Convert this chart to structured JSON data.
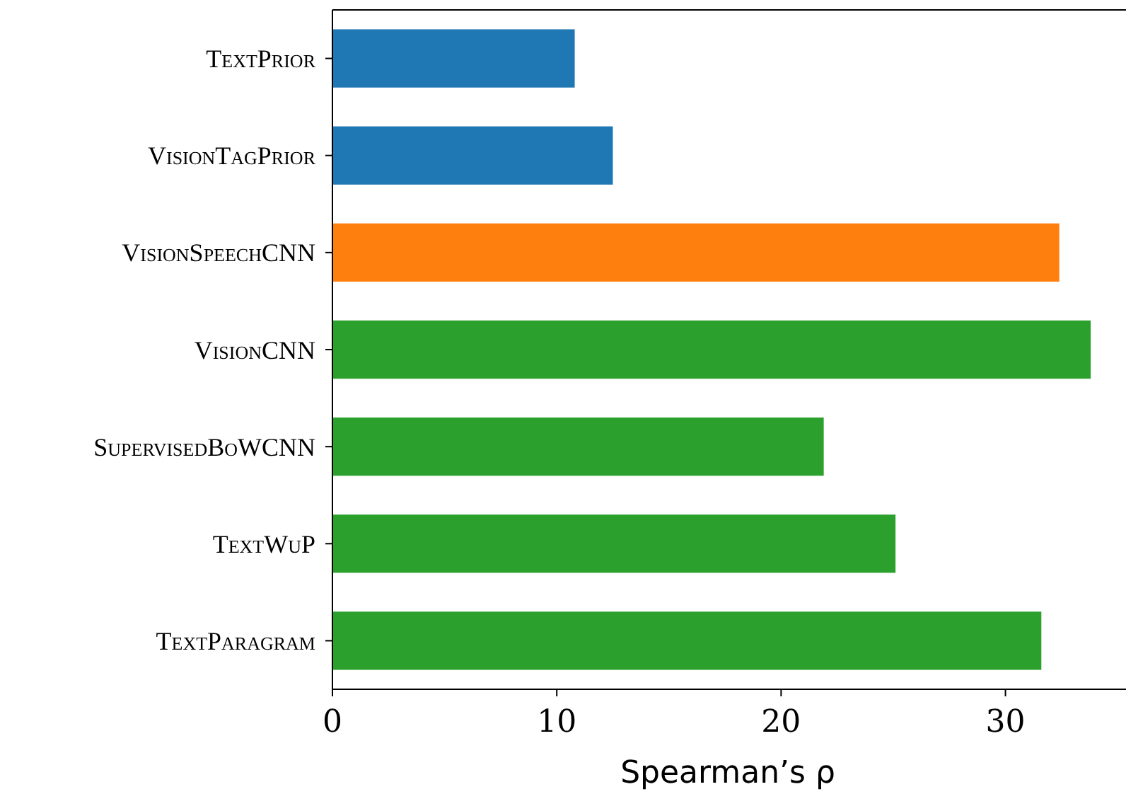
{
  "chart_data": {
    "type": "bar",
    "orientation": "horizontal",
    "xlabel": "Spearman’s ρ",
    "categories": [
      "TextPrior",
      "VisionTagPrior",
      "VisionSpeechCNN",
      "VisionCNN",
      "SupervisedBoWCNN",
      "TextWuP",
      "TextParagram"
    ],
    "values": [
      10.8,
      12.5,
      32.4,
      33.8,
      21.9,
      25.1,
      31.6
    ],
    "colors": [
      "#1f77b4",
      "#1f77b4",
      "#ff7f0e",
      "#2ca02c",
      "#2ca02c",
      "#2ca02c",
      "#2ca02c"
    ],
    "xlim": [
      0,
      35.5
    ],
    "xticks": [
      0,
      10,
      20,
      30
    ],
    "grid": false
  }
}
